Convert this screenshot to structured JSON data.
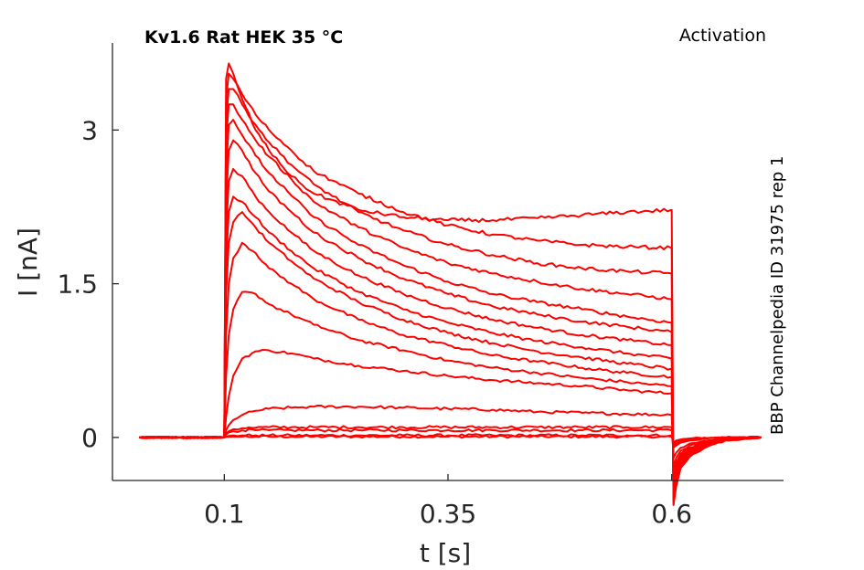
{
  "header": {
    "title_left": "Kv1.6  Rat  HEK  35 °C",
    "title_right": "Activation"
  },
  "side_label": "BBP Channelpedia ID 31975 rep 1",
  "colors": {
    "trace": "#ff0000",
    "axis": "#262626"
  },
  "chart_data": {
    "type": "line",
    "xlabel": "t [s]",
    "ylabel": "I [nA]",
    "xlim": [
      -0.025,
      0.725
    ],
    "ylim": [
      -0.42,
      3.85
    ],
    "xticks": [
      0.1,
      0.35,
      0.6
    ],
    "xtick_labels": [
      "0.1",
      "0.35",
      "0.6"
    ],
    "yticks": [
      0,
      1.5,
      3
    ],
    "ytick_labels": [
      "0",
      "1.5",
      "3"
    ],
    "grid": false,
    "legend": "none",
    "trace_color": "#ff0000",
    "time_s": [
      0.005,
      0.05,
      0.0995,
      0.1,
      0.102,
      0.105,
      0.11,
      0.12,
      0.135,
      0.15,
      0.175,
      0.2,
      0.25,
      0.3,
      0.35,
      0.4,
      0.45,
      0.5,
      0.55,
      0.5995,
      0.6,
      0.602,
      0.605,
      0.61,
      0.62,
      0.64,
      0.66,
      0.7
    ],
    "series": [
      {
        "values": [
          0,
          0,
          0,
          0.0,
          0.005,
          0.006,
          0.007,
          0.008,
          0.008,
          0.008,
          0.008,
          0.008,
          0.008,
          0.008,
          0.008,
          0.008,
          0.008,
          0.008,
          0.008,
          0.008,
          0.008,
          -0.05,
          -0.03,
          -0.02,
          -0.01,
          -0.005,
          0,
          0
        ]
      },
      {
        "values": [
          0,
          0,
          0,
          0.0,
          0.01,
          0.015,
          0.02,
          0.02,
          0.02,
          0.02,
          0.02,
          0.02,
          0.02,
          0.02,
          0.02,
          0.02,
          0.02,
          0.02,
          0.02,
          0.02,
          0.02,
          -0.06,
          -0.04,
          -0.025,
          -0.015,
          -0.005,
          0,
          0
        ]
      },
      {
        "values": [
          0,
          0,
          0,
          0.0,
          0.03,
          0.05,
          0.06,
          0.07,
          0.07,
          0.07,
          0.07,
          0.07,
          0.07,
          0.07,
          0.07,
          0.07,
          0.07,
          0.07,
          0.07,
          0.07,
          0.07,
          -0.08,
          -0.06,
          -0.04,
          -0.02,
          -0.01,
          0,
          0
        ]
      },
      {
        "values": [
          0,
          0,
          0,
          0.0,
          0.04,
          0.06,
          0.08,
          0.09,
          0.095,
          0.1,
          0.1,
          0.1,
          0.1,
          0.1,
          0.1,
          0.1,
          0.1,
          0.1,
          0.1,
          0.1,
          0.1,
          -0.1,
          -0.08,
          -0.05,
          -0.03,
          -0.01,
          0,
          0
        ]
      },
      {
        "values": [
          0,
          0,
          0,
          0.0,
          0.07,
          0.12,
          0.17,
          0.22,
          0.26,
          0.28,
          0.29,
          0.3,
          0.3,
          0.29,
          0.28,
          0.27,
          0.25,
          0.24,
          0.23,
          0.22,
          0.22,
          -0.2,
          -0.15,
          -0.1,
          -0.06,
          -0.03,
          -0.01,
          0
        ]
      },
      {
        "values": [
          0,
          0,
          0,
          0.0,
          0.2,
          0.4,
          0.6,
          0.77,
          0.84,
          0.85,
          0.82,
          0.77,
          0.7,
          0.65,
          0.6,
          0.56,
          0.53,
          0.5,
          0.46,
          0.43,
          0.43,
          -0.3,
          -0.2,
          -0.13,
          -0.08,
          -0.04,
          -0.02,
          0
        ]
      },
      {
        "values": [
          0,
          0,
          0,
          0.0,
          0.6,
          1.0,
          1.25,
          1.42,
          1.4,
          1.3,
          1.2,
          1.1,
          0.95,
          0.85,
          0.75,
          0.68,
          0.63,
          0.58,
          0.54,
          0.5,
          0.5,
          -0.35,
          -0.25,
          -0.16,
          -0.1,
          -0.05,
          -0.02,
          0
        ]
      },
      {
        "values": [
          0,
          0,
          0,
          0.0,
          1.0,
          1.5,
          1.75,
          1.9,
          1.8,
          1.65,
          1.5,
          1.35,
          1.15,
          1.0,
          0.9,
          0.8,
          0.74,
          0.68,
          0.63,
          0.59,
          0.59,
          -0.4,
          -0.28,
          -0.18,
          -0.11,
          -0.05,
          -0.02,
          0
        ]
      },
      {
        "values": [
          0,
          0,
          0,
          0.0,
          1.4,
          1.9,
          2.1,
          2.2,
          2.05,
          1.9,
          1.72,
          1.55,
          1.32,
          1.15,
          1.02,
          0.92,
          0.84,
          0.78,
          0.72,
          0.67,
          0.67,
          -0.42,
          -0.3,
          -0.2,
          -0.12,
          -0.06,
          -0.02,
          0
        ]
      },
      {
        "values": [
          0,
          0,
          0,
          0.0,
          1.7,
          2.2,
          2.35,
          2.3,
          2.15,
          2.0,
          1.82,
          1.65,
          1.42,
          1.25,
          1.12,
          1.02,
          0.94,
          0.88,
          0.82,
          0.77,
          0.77,
          -0.45,
          -0.32,
          -0.21,
          -0.13,
          -0.06,
          -0.02,
          0
        ]
      },
      {
        "values": [
          0,
          0,
          0,
          0.0,
          2.0,
          2.5,
          2.62,
          2.55,
          2.35,
          2.2,
          2.0,
          1.82,
          1.58,
          1.4,
          1.26,
          1.15,
          1.07,
          1.0,
          0.95,
          0.9,
          0.9,
          -0.48,
          -0.34,
          -0.22,
          -0.14,
          -0.07,
          -0.02,
          0
        ]
      },
      {
        "values": [
          0,
          0,
          0,
          0.0,
          2.3,
          2.8,
          2.9,
          2.8,
          2.58,
          2.4,
          2.2,
          2.0,
          1.75,
          1.55,
          1.4,
          1.28,
          1.2,
          1.13,
          1.08,
          1.03,
          1.03,
          -0.5,
          -0.36,
          -0.23,
          -0.14,
          -0.07,
          -0.02,
          0
        ]
      },
      {
        "values": [
          0,
          0,
          0,
          0.0,
          2.6,
          3.05,
          3.1,
          2.95,
          2.75,
          2.58,
          2.36,
          2.15,
          1.88,
          1.68,
          1.52,
          1.4,
          1.32,
          1.25,
          1.18,
          1.12,
          1.12,
          -0.53,
          -0.38,
          -0.24,
          -0.15,
          -0.07,
          -0.02,
          0
        ]
      },
      {
        "values": [
          0,
          0,
          0,
          0.0,
          2.9,
          3.25,
          3.25,
          3.1,
          2.9,
          2.74,
          2.52,
          2.3,
          2.05,
          1.85,
          1.7,
          1.6,
          1.52,
          1.45,
          1.4,
          1.35,
          1.35,
          -0.56,
          -0.4,
          -0.25,
          -0.16,
          -0.08,
          -0.02,
          0
        ]
      },
      {
        "values": [
          0,
          0,
          0,
          0.0,
          3.1,
          3.4,
          3.4,
          3.25,
          3.05,
          2.88,
          2.66,
          2.47,
          2.2,
          2.02,
          1.88,
          1.78,
          1.7,
          1.65,
          1.62,
          1.6,
          1.6,
          -0.58,
          -0.42,
          -0.26,
          -0.17,
          -0.08,
          -0.02,
          0
        ]
      },
      {
        "values": [
          0,
          0,
          0,
          0.0,
          3.3,
          3.55,
          3.5,
          3.35,
          3.15,
          3.0,
          2.8,
          2.6,
          2.38,
          2.2,
          2.07,
          1.98,
          1.92,
          1.88,
          1.86,
          1.85,
          1.85,
          -0.62,
          -0.44,
          -0.28,
          -0.18,
          -0.08,
          -0.02,
          0
        ]
      },
      {
        "values": [
          0,
          0,
          0,
          0.0,
          3.5,
          3.65,
          3.55,
          3.3,
          3.0,
          2.8,
          2.55,
          2.38,
          2.22,
          2.15,
          2.12,
          2.12,
          2.14,
          2.17,
          2.2,
          2.22,
          2.22,
          -0.66,
          -0.48,
          -0.3,
          -0.19,
          -0.09,
          -0.03,
          0
        ]
      }
    ]
  }
}
